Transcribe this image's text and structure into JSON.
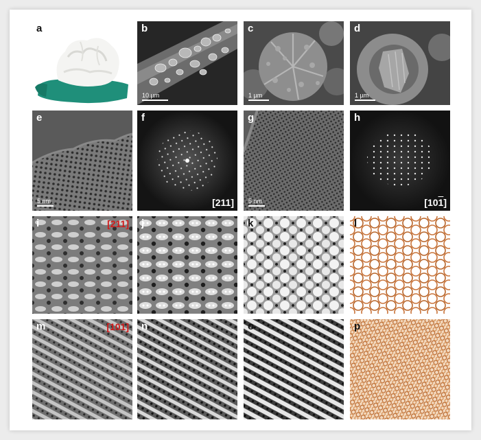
{
  "figure": {
    "panels": [
      {
        "id": "a",
        "label": "a"
      },
      {
        "id": "b",
        "label": "b",
        "scale_bar": "10 µm"
      },
      {
        "id": "c",
        "label": "c",
        "scale_bar": "1 µm"
      },
      {
        "id": "d",
        "label": "d",
        "scale_bar": "1 µm"
      },
      {
        "id": "e",
        "label": "e",
        "scale_bar": "5 nm"
      },
      {
        "id": "f",
        "label": "f",
        "zone_axis": "[211]"
      },
      {
        "id": "g",
        "label": "g",
        "scale_bar": "5 nm"
      },
      {
        "id": "h",
        "label": "h",
        "zone_axis_main": "[10",
        "zone_axis_bar": "1",
        "zone_axis_end": "]"
      },
      {
        "id": "i",
        "label": "i",
        "zone_axis": "[211]"
      },
      {
        "id": "j",
        "label": "j"
      },
      {
        "id": "k",
        "label": "k"
      },
      {
        "id": "l",
        "label": "l"
      },
      {
        "id": "m",
        "label": "m",
        "zone_axis": "[101]"
      },
      {
        "id": "n",
        "label": "n"
      },
      {
        "id": "o",
        "label": "o"
      },
      {
        "id": "p",
        "label": "p"
      }
    ]
  }
}
